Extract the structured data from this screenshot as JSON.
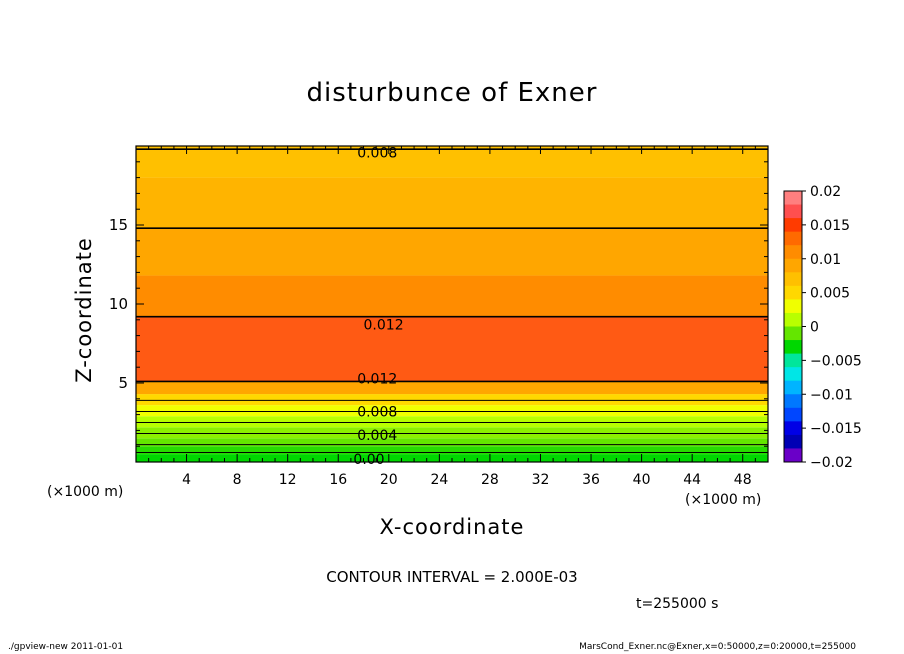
{
  "chart_data": {
    "type": "contour",
    "title": "disturbunce of Exner",
    "xlabel": "X-coordinate",
    "ylabel": "Z-coordinate",
    "x_unit": "(×1000 m)",
    "x_ticks": [
      4,
      8,
      12,
      16,
      20,
      24,
      28,
      32,
      36,
      40,
      44,
      48
    ],
    "xlim": [
      0,
      50
    ],
    "y_ticks": [
      5,
      10,
      15
    ],
    "ylim": [
      0,
      20
    ],
    "contour_interval": "CONTOUR INTERVAL = 2.000E-03",
    "contour_labels": [
      {
        "text": "0.008",
        "x": 17.5,
        "z": 19.6
      },
      {
        "text": "0.012",
        "x": 18.0,
        "z": 8.7
      },
      {
        "text": "0.012",
        "x": 17.5,
        "z": 5.3
      },
      {
        "text": "0.008",
        "x": 17.5,
        "z": 3.2
      },
      {
        "text": "0.004",
        "x": 17.5,
        "z": 1.7
      },
      {
        "text": "0.00",
        "x": 17.2,
        "z": 0.2
      }
    ],
    "colorbar": {
      "tick_labels": [
        "0.02",
        "0.015",
        "0.01",
        "0.005",
        "0",
        "−0.005",
        "−0.01",
        "−0.015",
        "−0.02"
      ],
      "levels": [
        0.02,
        0.018,
        0.016,
        0.014,
        0.012,
        0.01,
        0.008,
        0.006,
        0.004,
        0.002,
        0.0,
        -0.002,
        -0.004,
        -0.006,
        -0.008,
        -0.01,
        -0.012,
        -0.014,
        -0.016,
        -0.018,
        -0.02
      ],
      "colors": [
        "#ff7f7f",
        "#ff4f4f",
        "#ff3b00",
        "#ff6a00",
        "#ff8c00",
        "#ffa600",
        "#ffc000",
        "#ffd800",
        "#f0ff00",
        "#b8ff00",
        "#64e600",
        "#00d700",
        "#00e69b",
        "#00e6e6",
        "#00b4ff",
        "#0078ff",
        "#0046ff",
        "#0000e6",
        "#0000b4",
        "#6a00c8"
      ]
    },
    "bands": [
      {
        "from_z": 0.0,
        "to_z": 0.5,
        "color": "#00d700"
      },
      {
        "from_z": 0.5,
        "to_z": 1.0,
        "color": "#28dc00"
      },
      {
        "from_z": 1.0,
        "to_z": 1.5,
        "color": "#64e600"
      },
      {
        "from_z": 1.5,
        "to_z": 2.2,
        "color": "#8cf000"
      },
      {
        "from_z": 2.2,
        "to_z": 2.9,
        "color": "#b8ff00"
      },
      {
        "from_z": 2.9,
        "to_z": 3.6,
        "color": "#f0ff00"
      },
      {
        "from_z": 3.6,
        "to_z": 4.3,
        "color": "#ffd800"
      },
      {
        "from_z": 4.3,
        "to_z": 5.1,
        "color": "#ffa600"
      },
      {
        "from_z": 5.1,
        "to_z": 9.2,
        "color": "#ff5a14"
      },
      {
        "from_z": 9.2,
        "to_z": 11.8,
        "color": "#ff8c00"
      },
      {
        "from_z": 11.8,
        "to_z": 14.8,
        "color": "#ffa600"
      },
      {
        "from_z": 14.8,
        "to_z": 18.0,
        "color": "#ffb400"
      },
      {
        "from_z": 18.0,
        "to_z": 20.0,
        "color": "#ffc000"
      }
    ],
    "contour_lines_z": [
      0.6,
      1.1,
      1.8,
      2.5,
      3.2,
      3.9,
      5.1,
      9.2,
      14.8,
      19.8
    ]
  },
  "figure": {
    "time_label": "t=255000 s",
    "footer_left": "./gpview-new  2011-01-01",
    "footer_right": "MarsCond_Exner.nc@Exner,x=0:50000,z=0:20000,t=255000"
  }
}
